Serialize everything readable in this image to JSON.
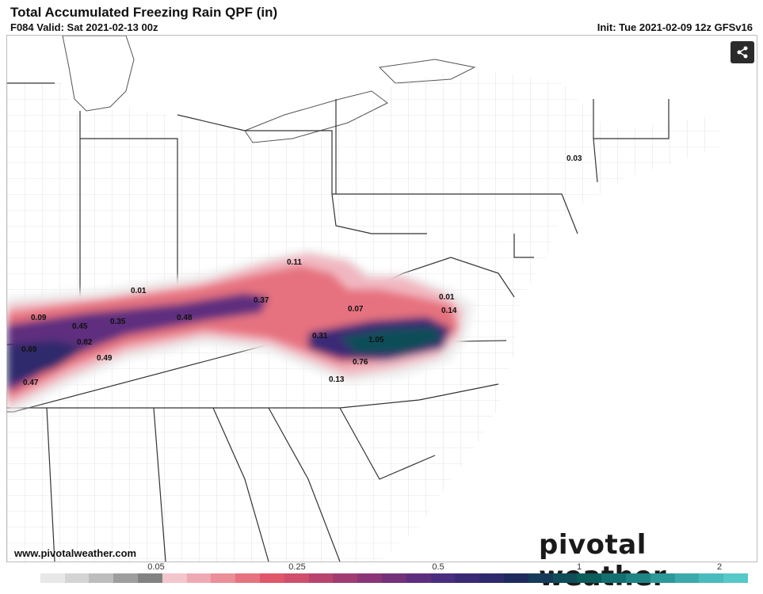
{
  "header": {
    "title": "Total Accumulated Freezing Rain QPF (in)",
    "valid": "F084 Valid: Sat 2021-02-13 00z",
    "init": "Init: Tue 2021-02-09 12z GFSv16"
  },
  "watermark": {
    "url": "www.pivotalweather.com",
    "logo": "pivotal weather"
  },
  "legend": {
    "colors": [
      "#ffffff",
      "#e8e8e8",
      "#d4d4d4",
      "#bdbdbd",
      "#9e9e9e",
      "#828282",
      "#f2c6cc",
      "#eeaab4",
      "#ea8e99",
      "#e6727f",
      "#e0566a",
      "#ce4e6c",
      "#b8446e",
      "#a03c72",
      "#8a3676",
      "#73327a",
      "#5e2e7e",
      "#4a2c80",
      "#3a2a76",
      "#2e2a6c",
      "#1e2b5c",
      "#163b5a",
      "#0f4d58",
      "#0b5d5a",
      "#137070",
      "#1f8484",
      "#2c9898",
      "#3aaaaa",
      "#48bcbc",
      "#55c8c8"
    ],
    "tick_labels": [
      "0.05",
      "0.25",
      "0.5",
      "1",
      "2"
    ]
  },
  "map_labels": [
    {
      "id": "v1",
      "text": "0.11"
    },
    {
      "id": "v2",
      "text": "0.01"
    },
    {
      "id": "v3",
      "text": "0.37"
    },
    {
      "id": "v4",
      "text": "0.09"
    },
    {
      "id": "v5",
      "text": "0.45"
    },
    {
      "id": "v6",
      "text": "0.35"
    },
    {
      "id": "v7",
      "text": "0.48"
    },
    {
      "id": "v8",
      "text": "0.69"
    },
    {
      "id": "v9",
      "text": "0.82"
    },
    {
      "id": "v10",
      "text": "0.49"
    },
    {
      "id": "v11",
      "text": "0.47"
    },
    {
      "id": "v12",
      "text": "0.07"
    },
    {
      "id": "v13",
      "text": "0.01"
    },
    {
      "id": "v14",
      "text": "0.14"
    },
    {
      "id": "v15",
      "text": "0.31"
    },
    {
      "id": "v16",
      "text": "1.05"
    },
    {
      "id": "v17",
      "text": "0.76"
    },
    {
      "id": "v18",
      "text": "0.13"
    },
    {
      "id": "v19",
      "text": "0.03"
    }
  ]
}
